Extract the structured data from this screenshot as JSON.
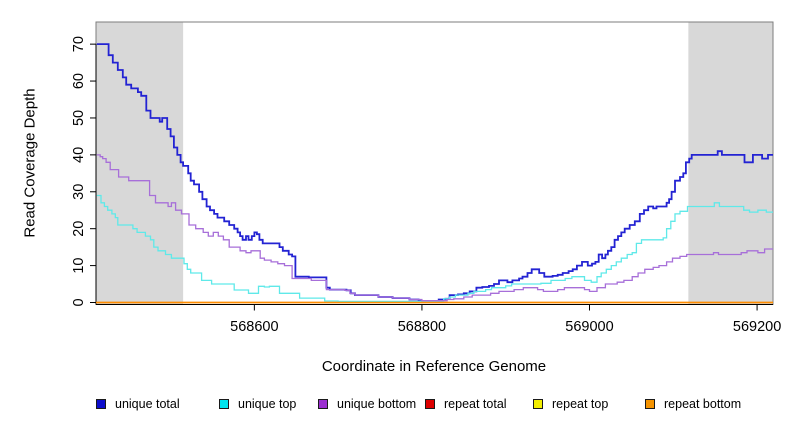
{
  "chart_data": {
    "type": "line",
    "step": true,
    "title": "",
    "xlabel": "Coordinate in Reference Genome",
    "ylabel": "Read Coverage Depth",
    "xlim": [
      568411,
      569219
    ],
    "ylim": [
      0,
      76
    ],
    "x_ticks": [
      568600,
      568800,
      569000,
      569200
    ],
    "y_ticks": [
      0,
      10,
      20,
      30,
      40,
      50,
      60,
      70
    ],
    "grid": false,
    "legend_position": "bottom",
    "background_regions": [
      {
        "name": "shaded-region-left",
        "x0": 568411,
        "x1": 568515,
        "color": "#d8d8d8"
      },
      {
        "name": "shaded-region-right",
        "x0": 569118,
        "x1": 569219,
        "color": "#d8d8d8"
      }
    ],
    "series": [
      {
        "name": "unique total",
        "color": "#2323d3",
        "swatch": "#0d0dcc",
        "width": 1.8,
        "points": [
          [
            568412,
            70
          ],
          [
            568426,
            67
          ],
          [
            568431,
            65
          ],
          [
            568437,
            63
          ],
          [
            568443,
            61
          ],
          [
            568447,
            59
          ],
          [
            568453,
            58
          ],
          [
            568461,
            57
          ],
          [
            568465,
            56
          ],
          [
            568471,
            52
          ],
          [
            568476,
            50
          ],
          [
            568487,
            49
          ],
          [
            568490,
            50
          ],
          [
            568496,
            47
          ],
          [
            568500,
            45
          ],
          [
            568504,
            42
          ],
          [
            568508,
            40
          ],
          [
            568512,
            38
          ],
          [
            568515,
            37
          ],
          [
            568521,
            35
          ],
          [
            568524,
            33
          ],
          [
            568528,
            32
          ],
          [
            568534,
            30
          ],
          [
            568538,
            28
          ],
          [
            568543,
            26
          ],
          [
            568547,
            25
          ],
          [
            568552,
            24
          ],
          [
            568556,
            23
          ],
          [
            568564,
            22
          ],
          [
            568570,
            21
          ],
          [
            568576,
            20
          ],
          [
            568580,
            19
          ],
          [
            568583,
            18
          ],
          [
            568586,
            17
          ],
          [
            568590,
            18
          ],
          [
            568593,
            17
          ],
          [
            568597,
            18
          ],
          [
            568600,
            19
          ],
          [
            568603,
            18.5
          ],
          [
            568606,
            17
          ],
          [
            568610,
            16
          ],
          [
            568630,
            15
          ],
          [
            568634,
            14
          ],
          [
            568641,
            13
          ],
          [
            568645,
            12.5
          ],
          [
            568649,
            7
          ],
          [
            568665,
            6.8
          ],
          [
            568686,
            4
          ],
          [
            568690,
            3.5
          ],
          [
            568710,
            3.3
          ],
          [
            568715,
            2.5
          ],
          [
            568720,
            2
          ],
          [
            568748,
            1.5
          ],
          [
            568765,
            1.2
          ],
          [
            568785,
            0.8
          ],
          [
            568796,
            0.4
          ],
          [
            568820,
            0.8
          ],
          [
            568828,
            1
          ],
          [
            568833,
            2
          ],
          [
            568843,
            2.2
          ],
          [
            568850,
            2.5
          ],
          [
            568857,
            3
          ],
          [
            568865,
            4
          ],
          [
            568872,
            4.2
          ],
          [
            568880,
            4.5
          ],
          [
            568886,
            5
          ],
          [
            568892,
            6
          ],
          [
            568902,
            5.5
          ],
          [
            568908,
            6
          ],
          [
            568916,
            6.5
          ],
          [
            568920,
            7
          ],
          [
            568926,
            8
          ],
          [
            568931,
            9
          ],
          [
            568940,
            8
          ],
          [
            568946,
            7
          ],
          [
            568956,
            7.2
          ],
          [
            568962,
            7.5
          ],
          [
            568968,
            8
          ],
          [
            568975,
            8.5
          ],
          [
            568980,
            9
          ],
          [
            568985,
            10
          ],
          [
            568991,
            11
          ],
          [
            568998,
            10
          ],
          [
            569003,
            10.5
          ],
          [
            569007,
            11
          ],
          [
            569011,
            13
          ],
          [
            569015,
            12
          ],
          [
            569019,
            13
          ],
          [
            569022,
            14
          ],
          [
            569026,
            15
          ],
          [
            569030,
            17
          ],
          [
            569034,
            18
          ],
          [
            569038,
            19
          ],
          [
            569042,
            20
          ],
          [
            569048,
            21
          ],
          [
            569054,
            22
          ],
          [
            569060,
            24
          ],
          [
            569065,
            25
          ],
          [
            569070,
            26
          ],
          [
            569076,
            25.5
          ],
          [
            569080,
            26
          ],
          [
            569092,
            27
          ],
          [
            569095,
            28
          ],
          [
            569098,
            30
          ],
          [
            569102,
            33
          ],
          [
            569108,
            34
          ],
          [
            569112,
            35
          ],
          [
            569115,
            38
          ],
          [
            569119,
            39
          ],
          [
            569122,
            40
          ],
          [
            569153,
            41
          ],
          [
            569158,
            40
          ],
          [
            569185,
            38
          ],
          [
            569195,
            40
          ],
          [
            569206,
            39
          ],
          [
            569213,
            40
          ]
        ]
      },
      {
        "name": "unique top",
        "color": "#5fe9e9",
        "swatch": "#00e5ee",
        "width": 1.3,
        "points": [
          [
            568412,
            29
          ],
          [
            568417,
            27
          ],
          [
            568421,
            26
          ],
          [
            568425,
            25
          ],
          [
            568430,
            24
          ],
          [
            568434,
            23
          ],
          [
            568437,
            21
          ],
          [
            568455,
            20
          ],
          [
            568460,
            19
          ],
          [
            568470,
            18
          ],
          [
            568476,
            17
          ],
          [
            568480,
            15
          ],
          [
            568485,
            14
          ],
          [
            568494,
            13
          ],
          [
            568501,
            12
          ],
          [
            568516,
            10.5
          ],
          [
            568520,
            9
          ],
          [
            568524,
            8
          ],
          [
            568537,
            6
          ],
          [
            568549,
            5
          ],
          [
            568576,
            3.4
          ],
          [
            568593,
            2.5
          ],
          [
            568605,
            4.4
          ],
          [
            568612,
            4.2
          ],
          [
            568618,
            4.4
          ],
          [
            568630,
            2.5
          ],
          [
            568654,
            1.2
          ],
          [
            568684,
            0.4
          ],
          [
            568700,
            0.3
          ],
          [
            568826,
            1
          ],
          [
            568833,
            1.5
          ],
          [
            568840,
            2
          ],
          [
            568855,
            2.5
          ],
          [
            568862,
            3
          ],
          [
            568876,
            3.5
          ],
          [
            568883,
            4
          ],
          [
            568900,
            4.5
          ],
          [
            568907,
            5
          ],
          [
            568942,
            5.2
          ],
          [
            568954,
            6
          ],
          [
            568971,
            6.5
          ],
          [
            568979,
            7
          ],
          [
            568994,
            6
          ],
          [
            569002,
            5.5
          ],
          [
            569009,
            7
          ],
          [
            569014,
            8
          ],
          [
            569020,
            9
          ],
          [
            569026,
            10
          ],
          [
            569032,
            11
          ],
          [
            569038,
            12
          ],
          [
            569045,
            13
          ],
          [
            569051,
            13.5
          ],
          [
            569056,
            16
          ],
          [
            569062,
            17
          ],
          [
            569088,
            17.5
          ],
          [
            569092,
            20
          ],
          [
            569097,
            22
          ],
          [
            569102,
            24
          ],
          [
            569108,
            24.7
          ],
          [
            569117,
            26
          ],
          [
            569149,
            27
          ],
          [
            569155,
            26
          ],
          [
            569184,
            25
          ],
          [
            569191,
            24.5
          ],
          [
            569201,
            25
          ],
          [
            569211,
            24.5
          ]
        ]
      },
      {
        "name": "unique bottom",
        "color": "#a76fd9",
        "swatch": "#9b2fd0",
        "width": 1.3,
        "points": [
          [
            568412,
            40
          ],
          [
            568416,
            39.5
          ],
          [
            568419,
            39
          ],
          [
            568423,
            38
          ],
          [
            568428,
            36
          ],
          [
            568438,
            34
          ],
          [
            568450,
            33
          ],
          [
            568475,
            29
          ],
          [
            568482,
            27
          ],
          [
            568497,
            26
          ],
          [
            568501,
            27
          ],
          [
            568506,
            25
          ],
          [
            568513,
            24
          ],
          [
            568522,
            21
          ],
          [
            568530,
            20
          ],
          [
            568539,
            19
          ],
          [
            568545,
            18
          ],
          [
            568551,
            19
          ],
          [
            568557,
            18
          ],
          [
            568563,
            17
          ],
          [
            568570,
            15
          ],
          [
            568583,
            14
          ],
          [
            568590,
            13.5
          ],
          [
            568596,
            14
          ],
          [
            568607,
            12
          ],
          [
            568612,
            11.5
          ],
          [
            568620,
            11
          ],
          [
            568628,
            10.5
          ],
          [
            568636,
            10
          ],
          [
            568645,
            6.5
          ],
          [
            568668,
            6
          ],
          [
            568686,
            3.5
          ],
          [
            568708,
            3.3
          ],
          [
            568714,
            2.5
          ],
          [
            568720,
            2
          ],
          [
            568748,
            1.5
          ],
          [
            568765,
            1.2
          ],
          [
            568785,
            0.8
          ],
          [
            568800,
            0.5
          ],
          [
            568830,
            0.8
          ],
          [
            568838,
            1
          ],
          [
            568850,
            1.5
          ],
          [
            568860,
            2
          ],
          [
            568882,
            2.5
          ],
          [
            568892,
            3
          ],
          [
            568910,
            3.5
          ],
          [
            568921,
            4
          ],
          [
            568938,
            3.5
          ],
          [
            568945,
            3
          ],
          [
            568962,
            3.5
          ],
          [
            568970,
            4
          ],
          [
            568994,
            3.5
          ],
          [
            569000,
            3
          ],
          [
            569009,
            4
          ],
          [
            569019,
            5
          ],
          [
            569033,
            5.5
          ],
          [
            569041,
            6
          ],
          [
            569051,
            7
          ],
          [
            569058,
            8
          ],
          [
            569066,
            9
          ],
          [
            569076,
            9.5
          ],
          [
            569083,
            10
          ],
          [
            569092,
            11
          ],
          [
            569099,
            12
          ],
          [
            569108,
            12.5
          ],
          [
            569116,
            13
          ],
          [
            569148,
            13.5
          ],
          [
            569154,
            13
          ],
          [
            569181,
            13.5
          ],
          [
            569188,
            14
          ],
          [
            569201,
            13.5
          ],
          [
            569209,
            14.5
          ]
        ]
      },
      {
        "name": "repeat total",
        "color": "#dd0000",
        "swatch": "#dd0000",
        "width": 1.3,
        "points": [
          [
            568411,
            0
          ]
        ]
      },
      {
        "name": "repeat top",
        "color": "#f2ee00",
        "swatch": "#f2ee00",
        "width": 1.3,
        "points": [
          [
            568411,
            0
          ]
        ]
      },
      {
        "name": "repeat bottom",
        "color": "#ff8c00",
        "swatch": "#f59300",
        "width": 1.6,
        "points": [
          [
            568411,
            0
          ]
        ]
      }
    ]
  }
}
